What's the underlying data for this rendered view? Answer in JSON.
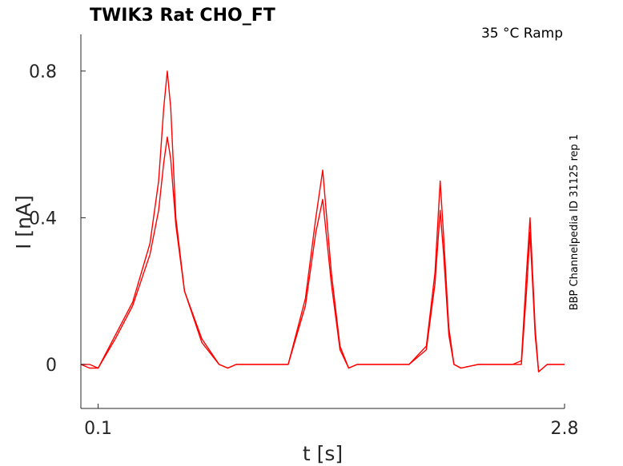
{
  "chart_data": {
    "type": "line",
    "title": "TWIK3  Rat  CHO_FT",
    "condition": "35 °C  Ramp",
    "side_label": "BBP Channelpedia ID 31125 rep 1",
    "xlabel": "t [s]",
    "ylabel": "I [nA]",
    "xlim": [
      0.0,
      2.8
    ],
    "ylim": [
      -0.12,
      0.9
    ],
    "x_ticks": [
      {
        "value": 0.1,
        "label": "0.1"
      },
      {
        "value": 2.8,
        "label": "2.8"
      }
    ],
    "y_ticks": [
      {
        "value": 0,
        "label": "0"
      },
      {
        "value": 0.4,
        "label": "0.4"
      },
      {
        "value": 0.8,
        "label": "0.8"
      }
    ],
    "line_color": "#ff0000",
    "series": [
      {
        "x": [
          0.0,
          0.05,
          0.1,
          0.2,
          0.3,
          0.4,
          0.45,
          0.48,
          0.5,
          0.52,
          0.55,
          0.6,
          0.7,
          0.8,
          0.85,
          0.9,
          1.0,
          1.1,
          1.2,
          1.3,
          1.36,
          1.4,
          1.45,
          1.5,
          1.55,
          1.6,
          1.7,
          1.8,
          1.9,
          2.0,
          2.05,
          2.08,
          2.1,
          2.13,
          2.16,
          2.2,
          2.3,
          2.4,
          2.5,
          2.55,
          2.58,
          2.6,
          2.63,
          2.65,
          2.7,
          2.8
        ],
        "y": [
          0.0,
          0.0,
          -0.01,
          0.08,
          0.17,
          0.33,
          0.5,
          0.7,
          0.8,
          0.7,
          0.4,
          0.2,
          0.07,
          0.0,
          -0.01,
          0.0,
          0.0,
          0.0,
          0.0,
          0.18,
          0.4,
          0.53,
          0.25,
          0.05,
          -0.01,
          0.0,
          0.0,
          0.0,
          0.0,
          0.05,
          0.25,
          0.5,
          0.35,
          0.1,
          0.0,
          -0.01,
          0.0,
          0.0,
          0.0,
          0.01,
          0.25,
          0.4,
          0.1,
          -0.02,
          0.0,
          0.0
        ]
      },
      {
        "x": [
          0.0,
          0.05,
          0.1,
          0.2,
          0.3,
          0.4,
          0.45,
          0.48,
          0.5,
          0.52,
          0.55,
          0.6,
          0.7,
          0.8,
          0.85,
          0.9,
          1.0,
          1.1,
          1.2,
          1.3,
          1.36,
          1.4,
          1.45,
          1.5,
          1.55,
          1.6,
          1.7,
          1.8,
          1.9,
          2.0,
          2.05,
          2.08,
          2.1,
          2.13,
          2.16,
          2.2,
          2.3,
          2.4,
          2.5,
          2.55,
          2.58,
          2.6,
          2.63,
          2.65,
          2.7,
          2.8
        ],
        "y": [
          0.0,
          -0.01,
          -0.01,
          0.07,
          0.16,
          0.3,
          0.42,
          0.55,
          0.62,
          0.56,
          0.38,
          0.2,
          0.06,
          0.0,
          -0.01,
          0.0,
          0.0,
          0.0,
          0.0,
          0.16,
          0.36,
          0.45,
          0.22,
          0.04,
          -0.01,
          0.0,
          0.0,
          0.0,
          0.0,
          0.04,
          0.22,
          0.42,
          0.3,
          0.08,
          0.0,
          -0.01,
          0.0,
          0.0,
          0.0,
          0.0,
          0.2,
          0.36,
          0.08,
          -0.02,
          0.0,
          0.0
        ]
      }
    ]
  }
}
